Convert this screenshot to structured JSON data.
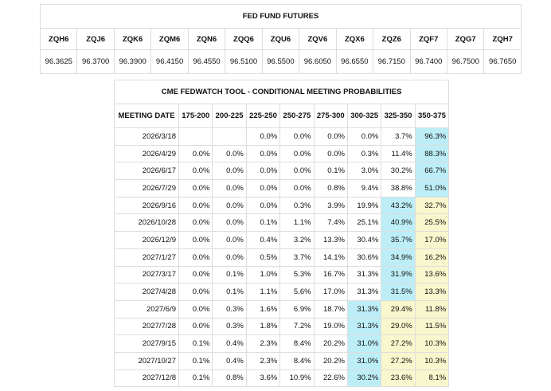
{
  "futures": {
    "title": "FED FUND FUTURES",
    "headers": [
      "ZQH6",
      "ZQJ6",
      "ZQK6",
      "ZQM6",
      "ZQN6",
      "ZQQ6",
      "ZQU6",
      "ZQV6",
      "ZQX6",
      "ZQZ6",
      "ZQF7",
      "ZQG7",
      "ZQH7"
    ],
    "values": [
      "96.3625",
      "96.3700",
      "96.3900",
      "96.4150",
      "96.4550",
      "96.5100",
      "96.5500",
      "96.6050",
      "96.6550",
      "96.7150",
      "96.7400",
      "96.7500",
      "96.7650"
    ]
  },
  "probabilities": {
    "title": "CME FEDWATCH TOOL - CONDITIONAL MEETING PROBABILITIES",
    "headers": [
      "MEETING DATE",
      "175-200",
      "200-225",
      "225-250",
      "250-275",
      "275-300",
      "300-325",
      "325-350",
      "350-375"
    ],
    "rows": [
      [
        "2026/3/18",
        null,
        null,
        "0.0%",
        "0.0%",
        "0.0%",
        "0.0%",
        "3.7%",
        "96.3%"
      ],
      [
        "2026/4/29",
        "0.0%",
        "0.0%",
        "0.0%",
        "0.0%",
        "0.0%",
        "0.3%",
        "11.4%",
        "88.3%"
      ],
      [
        "2026/6/17",
        "0.0%",
        "0.0%",
        "0.0%",
        "0.0%",
        "0.1%",
        "3.0%",
        "30.2%",
        "66.7%"
      ],
      [
        "2026/7/29",
        "0.0%",
        "0.0%",
        "0.0%",
        "0.0%",
        "0.8%",
        "9.4%",
        "38.8%",
        "51.0%"
      ],
      [
        "2026/9/16",
        "0.0%",
        "0.0%",
        "0.0%",
        "0.3%",
        "3.9%",
        "19.9%",
        "43.2%",
        "32.7%"
      ],
      [
        "2026/10/28",
        "0.0%",
        "0.0%",
        "0.1%",
        "1.1%",
        "7.4%",
        "25.1%",
        "40.9%",
        "25.5%"
      ],
      [
        "2026/12/9",
        "0.0%",
        "0.0%",
        "0.4%",
        "3.2%",
        "13.3%",
        "30.4%",
        "35.7%",
        "17.0%"
      ],
      [
        "2027/1/27",
        "0.0%",
        "0.0%",
        "0.5%",
        "3.7%",
        "14.1%",
        "30.6%",
        "34.9%",
        "16.2%"
      ],
      [
        "2027/3/17",
        "0.0%",
        "0.1%",
        "1.0%",
        "5.3%",
        "16.7%",
        "31.3%",
        "31.9%",
        "13.6%"
      ],
      [
        "2027/4/28",
        "0.0%",
        "0.1%",
        "1.1%",
        "5.6%",
        "17.0%",
        "31.3%",
        "31.5%",
        "13.3%"
      ],
      [
        "2027/6/9",
        "0.0%",
        "0.3%",
        "1.6%",
        "6.9%",
        "18.7%",
        "31.3%",
        "29.4%",
        "11.8%"
      ],
      [
        "2027/7/28",
        "0.0%",
        "0.3%",
        "1.8%",
        "7.2%",
        "19.0%",
        "31.3%",
        "29.0%",
        "11.5%"
      ],
      [
        "2027/9/15",
        "0.1%",
        "0.4%",
        "2.3%",
        "8.4%",
        "20.2%",
        "31.0%",
        "27.2%",
        "10.3%"
      ],
      [
        "2027/10/27",
        "0.1%",
        "0.4%",
        "2.3%",
        "8.4%",
        "20.2%",
        "31.0%",
        "27.2%",
        "10.3%"
      ],
      [
        "2027/12/8",
        "0.1%",
        "0.8%",
        "3.6%",
        "10.9%",
        "22.6%",
        "30.2%",
        "23.6%",
        "8.1%"
      ]
    ]
  }
}
